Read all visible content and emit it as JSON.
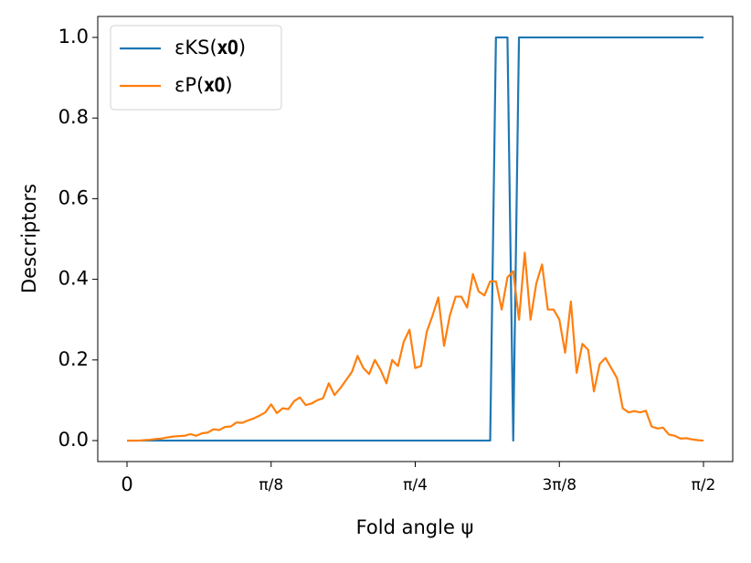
{
  "chart_data": {
    "type": "line",
    "x_label": "Fold angle ψ",
    "y_label": "Descriptors",
    "x": [
      0,
      0.0157,
      0.0314,
      0.0471,
      0.0628,
      0.0785,
      0.0942,
      0.11,
      0.1257,
      0.1414,
      0.1571,
      0.1728,
      0.1885,
      0.2042,
      0.2199,
      0.2356,
      0.2513,
      0.267,
      0.2827,
      0.2985,
      0.3142,
      0.3299,
      0.3456,
      0.3613,
      0.377,
      0.3927,
      0.4084,
      0.4241,
      0.4398,
      0.4555,
      0.4712,
      0.4869,
      0.5027,
      0.5184,
      0.5341,
      0.5498,
      0.5655,
      0.5812,
      0.5969,
      0.6126,
      0.6283,
      0.644,
      0.6597,
      0.6754,
      0.6912,
      0.7069,
      0.7226,
      0.7383,
      0.754,
      0.7697,
      0.7854,
      0.8011,
      0.8168,
      0.8325,
      0.8482,
      0.8639,
      0.8796,
      0.8954,
      0.9111,
      0.9268,
      0.9425,
      0.9582,
      0.9739,
      0.9896,
      1.0053,
      1.021,
      1.0367,
      1.0524,
      1.0681,
      1.0838,
      1.0996,
      1.1153,
      1.131,
      1.1467,
      1.1624,
      1.1781,
      1.1938,
      1.2095,
      1.2252,
      1.2409,
      1.2566,
      1.2723,
      1.2881,
      1.3038,
      1.3195,
      1.3352,
      1.3509,
      1.3666,
      1.3823,
      1.398,
      1.4137,
      1.4294,
      1.4451,
      1.4608,
      1.4765,
      1.4923,
      1.508,
      1.5237,
      1.5394,
      1.5551,
      1.5708
    ],
    "series": [
      {
        "name": "εKS(𝐱𝟎)",
        "color": "#1f77b4",
        "values": [
          0,
          0,
          0,
          0,
          0,
          0,
          0,
          0,
          0,
          0,
          0,
          0,
          0,
          0,
          0,
          0,
          0,
          0,
          0,
          0,
          0,
          0,
          0,
          0,
          0,
          0,
          0,
          0,
          0,
          0,
          0,
          0,
          0,
          0,
          0,
          0,
          0,
          0,
          0,
          0,
          0,
          0,
          0,
          0,
          0,
          0,
          0,
          0,
          0,
          0,
          0,
          0,
          0,
          0,
          0,
          0,
          0,
          0,
          0,
          0,
          0,
          0,
          0,
          0,
          1,
          1,
          1,
          0,
          1,
          1,
          1,
          1,
          1,
          1,
          1,
          1,
          1,
          1,
          1,
          1,
          1,
          1,
          1,
          1,
          1,
          1,
          1,
          1,
          1,
          1,
          1,
          1,
          1,
          1,
          1,
          1,
          1,
          1,
          1,
          1,
          1
        ]
      },
      {
        "name": "εP(𝐱𝟎)",
        "color": "#ff7f0e",
        "values": [
          0,
          0,
          0,
          0.001,
          0.002,
          0.004,
          0.005,
          0.008,
          0.01,
          0.011,
          0.012,
          0.016,
          0.012,
          0.018,
          0.02,
          0.028,
          0.026,
          0.034,
          0.035,
          0.045,
          0.044,
          0.05,
          0.055,
          0.062,
          0.07,
          0.09,
          0.068,
          0.08,
          0.078,
          0.098,
          0.107,
          0.088,
          0.092,
          0.1,
          0.105,
          0.142,
          0.113,
          0.13,
          0.15,
          0.17,
          0.21,
          0.18,
          0.165,
          0.2,
          0.175,
          0.142,
          0.2,
          0.185,
          0.245,
          0.275,
          0.18,
          0.185,
          0.27,
          0.31,
          0.355,
          0.235,
          0.31,
          0.357,
          0.357,
          0.33,
          0.413,
          0.37,
          0.36,
          0.395,
          0.395,
          0.325,
          0.405,
          0.42,
          0.3,
          0.466,
          0.3,
          0.39,
          0.437,
          0.325,
          0.325,
          0.3,
          0.218,
          0.345,
          0.168,
          0.24,
          0.225,
          0.122,
          0.19,
          0.205,
          0.18,
          0.155,
          0.08,
          0.07,
          0.073,
          0.07,
          0.074,
          0.035,
          0.03,
          0.032,
          0.015,
          0.012,
          0.005,
          0.006,
          0.003,
          0.001,
          0
        ]
      }
    ],
    "xlim": [
      -0.0797,
      1.6505
    ],
    "ylim": [
      -0.052,
      1.052
    ],
    "xticks": [
      0,
      {
        "value": 0.3927,
        "label": "π/8"
      },
      {
        "value": 0.7854,
        "label": "π/4"
      },
      {
        "value": 1.1781,
        "label": "3π/8"
      },
      {
        "value": 1.5708,
        "label": "π/2"
      }
    ],
    "yticks": [
      {
        "value": 0,
        "label": "0.0"
      },
      {
        "value": 0.2,
        "label": "0.2"
      },
      {
        "value": 0.4,
        "label": "0.4"
      },
      {
        "value": 0.6,
        "label": "0.6"
      },
      {
        "value": 0.8,
        "label": "0.8"
      },
      {
        "value": 1,
        "label": "1.0"
      }
    ],
    "grid": false,
    "legend": "upper-left"
  }
}
